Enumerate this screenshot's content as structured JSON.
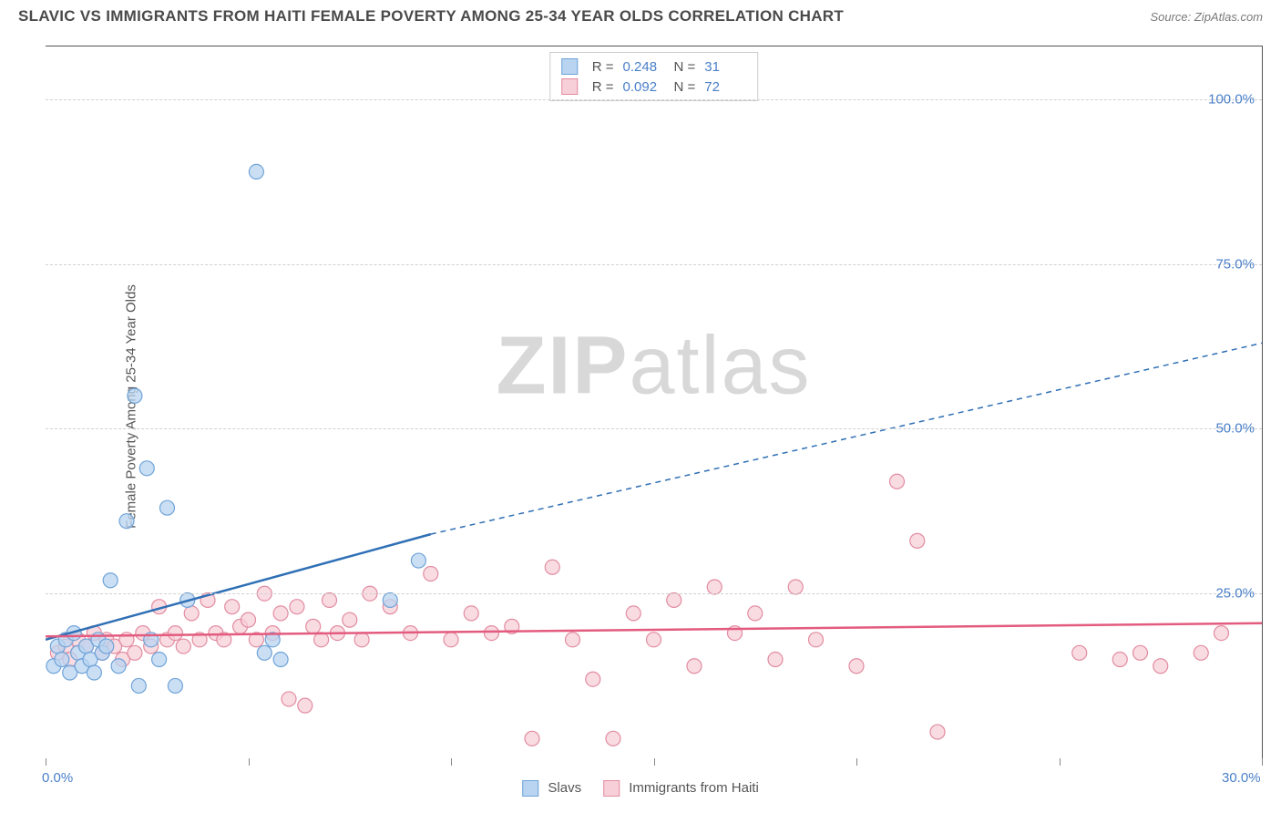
{
  "header": {
    "title": "SLAVIC VS IMMIGRANTS FROM HAITI FEMALE POVERTY AMONG 25-34 YEAR OLDS CORRELATION CHART",
    "source": "Source: ZipAtlas.com"
  },
  "watermark": {
    "bold": "ZIP",
    "light": "atlas"
  },
  "axes": {
    "y_label": "Female Poverty Among 25-34 Year Olds",
    "xlim": [
      0,
      30
    ],
    "ylim": [
      0,
      108
    ],
    "y_ticks": [
      25,
      50,
      75,
      100
    ],
    "y_tick_labels": [
      "25.0%",
      "50.0%",
      "75.0%",
      "100.0%"
    ],
    "x_ticks": [
      0,
      5,
      10,
      15,
      20,
      25,
      30
    ],
    "x_tick_labels": {
      "0": "0.0%",
      "30": "30.0%"
    },
    "tick_label_color": "#4a7fc9",
    "axis_label_color": "#555555",
    "grid_color": "#d0d0d0"
  },
  "series": {
    "slavs": {
      "label": "Slavs",
      "fill": "#b9d4f0",
      "stroke": "#6fa3d8",
      "line_color": "#2f6fb5",
      "points": [
        [
          0.2,
          14
        ],
        [
          0.3,
          17
        ],
        [
          0.4,
          15
        ],
        [
          0.5,
          18
        ],
        [
          0.6,
          13
        ],
        [
          0.7,
          19
        ],
        [
          0.8,
          16
        ],
        [
          0.9,
          14
        ],
        [
          1.0,
          17
        ],
        [
          1.1,
          15
        ],
        [
          1.2,
          13
        ],
        [
          1.3,
          18
        ],
        [
          1.4,
          16
        ],
        [
          1.5,
          17
        ],
        [
          1.6,
          27
        ],
        [
          1.8,
          14
        ],
        [
          2.0,
          36
        ],
        [
          2.2,
          55
        ],
        [
          2.3,
          11
        ],
        [
          2.5,
          44
        ],
        [
          2.6,
          18
        ],
        [
          2.8,
          15
        ],
        [
          3.0,
          38
        ],
        [
          3.2,
          11
        ],
        [
          3.5,
          24
        ],
        [
          5.2,
          89
        ],
        [
          5.4,
          16
        ],
        [
          5.6,
          18
        ],
        [
          5.8,
          15
        ],
        [
          8.5,
          24
        ],
        [
          9.2,
          30
        ]
      ],
      "trend": {
        "x1": 0,
        "y1": 18,
        "x2": 9.5,
        "y2": 34,
        "ext_x2": 30,
        "ext_y2": 63
      }
    },
    "haiti": {
      "label": "Immigrants from Haiti",
      "fill": "#f7cfd8",
      "stroke": "#e28ca0",
      "line_color": "#e35b7e",
      "points": [
        [
          0.3,
          16
        ],
        [
          0.5,
          17
        ],
        [
          0.6,
          15
        ],
        [
          0.8,
          18
        ],
        [
          1.0,
          17
        ],
        [
          1.2,
          19
        ],
        [
          1.4,
          16
        ],
        [
          1.5,
          18
        ],
        [
          1.7,
          17
        ],
        [
          1.9,
          15
        ],
        [
          2.0,
          18
        ],
        [
          2.2,
          16
        ],
        [
          2.4,
          19
        ],
        [
          2.6,
          17
        ],
        [
          2.8,
          23
        ],
        [
          3.0,
          18
        ],
        [
          3.2,
          19
        ],
        [
          3.4,
          17
        ],
        [
          3.6,
          22
        ],
        [
          3.8,
          18
        ],
        [
          4.0,
          24
        ],
        [
          4.2,
          19
        ],
        [
          4.4,
          18
        ],
        [
          4.6,
          23
        ],
        [
          4.8,
          20
        ],
        [
          5.0,
          21
        ],
        [
          5.2,
          18
        ],
        [
          5.4,
          25
        ],
        [
          5.6,
          19
        ],
        [
          5.8,
          22
        ],
        [
          6.0,
          9
        ],
        [
          6.2,
          23
        ],
        [
          6.4,
          8
        ],
        [
          6.6,
          20
        ],
        [
          6.8,
          18
        ],
        [
          7.0,
          24
        ],
        [
          7.2,
          19
        ],
        [
          7.5,
          21
        ],
        [
          7.8,
          18
        ],
        [
          8.0,
          25
        ],
        [
          8.5,
          23
        ],
        [
          9.0,
          19
        ],
        [
          9.5,
          28
        ],
        [
          10.0,
          18
        ],
        [
          10.5,
          22
        ],
        [
          11.0,
          19
        ],
        [
          11.5,
          20
        ],
        [
          12.0,
          3
        ],
        [
          12.5,
          29
        ],
        [
          13.0,
          18
        ],
        [
          13.5,
          12
        ],
        [
          14.0,
          3
        ],
        [
          14.5,
          22
        ],
        [
          15.0,
          18
        ],
        [
          15.5,
          24
        ],
        [
          16.0,
          14
        ],
        [
          16.5,
          26
        ],
        [
          17.0,
          19
        ],
        [
          17.5,
          22
        ],
        [
          18.0,
          15
        ],
        [
          18.5,
          26
        ],
        [
          19.0,
          18
        ],
        [
          20.0,
          14
        ],
        [
          21.0,
          42
        ],
        [
          21.5,
          33
        ],
        [
          22.0,
          4
        ],
        [
          25.5,
          16
        ],
        [
          26.5,
          15
        ],
        [
          27.0,
          16
        ],
        [
          27.5,
          14
        ],
        [
          28.5,
          16
        ],
        [
          29.0,
          19
        ]
      ],
      "trend": {
        "x1": 0,
        "y1": 18.5,
        "x2": 30,
        "y2": 20.5
      }
    }
  },
  "stats": {
    "slavs": {
      "R": "0.248",
      "N": "31"
    },
    "haiti": {
      "R": "0.092",
      "N": "72"
    }
  },
  "style": {
    "marker_radius": 8,
    "marker_opacity": 0.75,
    "line_width": 2.5,
    "background_color": "#ffffff"
  }
}
